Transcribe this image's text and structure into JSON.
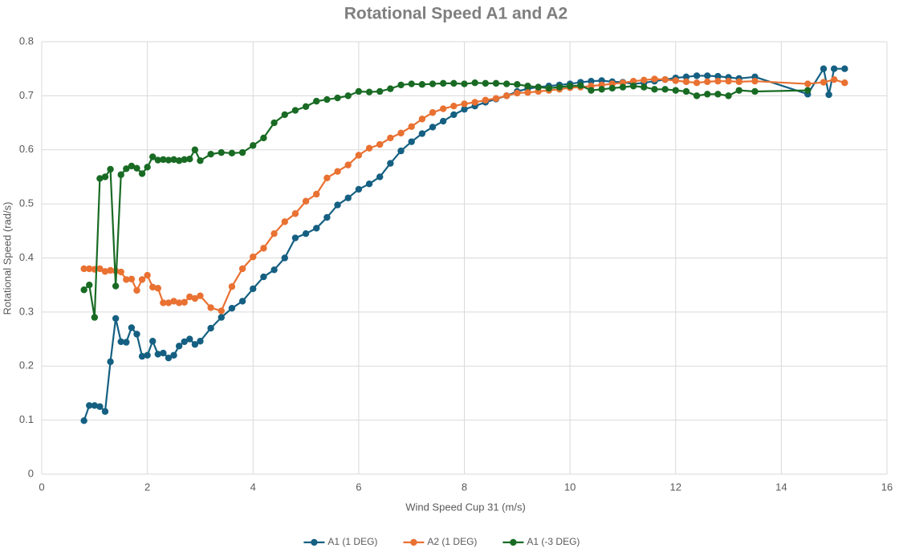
{
  "chart_data": {
    "type": "line",
    "title": "Rotational Speed A1 and A2",
    "x_label": "Wind Speed Cup 31 (m/s)",
    "y_label": "Rotational Speed (rad/s)",
    "xlim": [
      0,
      16
    ],
    "xticks": [
      0,
      2,
      4,
      6,
      8,
      10,
      12,
      14,
      16
    ],
    "ylim": [
      0,
      0.8
    ],
    "yticks": [
      0,
      0.1,
      0.2,
      0.3,
      0.4,
      0.5,
      0.6,
      0.7,
      0.8
    ],
    "grid": true,
    "legend": "bottom",
    "series": [
      {
        "name": "A1 (1 DEG)",
        "color": "#156082",
        "x": [
          0.8,
          0.9,
          1.0,
          1.1,
          1.2,
          1.3,
          1.4,
          1.5,
          1.6,
          1.7,
          1.8,
          1.9,
          2.0,
          2.1,
          2.2,
          2.3,
          2.4,
          2.5,
          2.6,
          2.7,
          2.8,
          2.9,
          3.0,
          3.2,
          3.4,
          3.6,
          3.8,
          4.0,
          4.2,
          4.4,
          4.6,
          4.8,
          5.0,
          5.2,
          5.4,
          5.6,
          5.8,
          6.0,
          6.2,
          6.4,
          6.6,
          6.8,
          7.0,
          7.2,
          7.4,
          7.6,
          7.8,
          8.0,
          8.2,
          8.4,
          8.6,
          8.8,
          9.0,
          9.2,
          9.4,
          9.6,
          9.8,
          10.0,
          10.2,
          10.4,
          10.6,
          10.8,
          11.0,
          11.2,
          11.4,
          11.6,
          11.8,
          12.0,
          12.2,
          12.4,
          12.6,
          12.8,
          13.0,
          13.2,
          13.5,
          14.5,
          14.8,
          14.9,
          15.0,
          15.2
        ],
        "values": [
          0.099,
          0.127,
          0.127,
          0.125,
          0.116,
          0.208,
          0.288,
          0.245,
          0.244,
          0.271,
          0.259,
          0.218,
          0.22,
          0.246,
          0.222,
          0.224,
          0.215,
          0.22,
          0.237,
          0.245,
          0.25,
          0.24,
          0.246,
          0.27,
          0.29,
          0.307,
          0.32,
          0.343,
          0.365,
          0.378,
          0.4,
          0.437,
          0.445,
          0.455,
          0.475,
          0.498,
          0.511,
          0.527,
          0.537,
          0.55,
          0.575,
          0.598,
          0.615,
          0.63,
          0.642,
          0.653,
          0.665,
          0.675,
          0.681,
          0.688,
          0.694,
          0.7,
          0.708,
          0.713,
          0.716,
          0.718,
          0.72,
          0.722,
          0.725,
          0.727,
          0.728,
          0.726,
          0.725,
          0.722,
          0.724,
          0.727,
          0.73,
          0.733,
          0.735,
          0.737,
          0.737,
          0.736,
          0.734,
          0.732,
          0.735,
          0.703,
          0.75,
          0.702,
          0.75,
          0.75
        ]
      },
      {
        "name": "A2 (1 DEG)",
        "color": "#e97132",
        "x": [
          0.8,
          0.9,
          1.0,
          1.1,
          1.2,
          1.3,
          1.4,
          1.5,
          1.6,
          1.7,
          1.8,
          1.9,
          2.0,
          2.1,
          2.2,
          2.3,
          2.4,
          2.5,
          2.6,
          2.7,
          2.8,
          2.9,
          3.0,
          3.2,
          3.4,
          3.6,
          3.8,
          4.0,
          4.2,
          4.4,
          4.6,
          4.8,
          5.0,
          5.2,
          5.4,
          5.6,
          5.8,
          6.0,
          6.2,
          6.4,
          6.6,
          6.8,
          7.0,
          7.2,
          7.4,
          7.6,
          7.8,
          8.0,
          8.2,
          8.4,
          8.6,
          8.8,
          9.0,
          9.2,
          9.4,
          9.6,
          9.8,
          10.0,
          10.2,
          10.4,
          10.6,
          10.8,
          11.0,
          11.2,
          11.4,
          11.6,
          11.8,
          12.0,
          12.2,
          12.4,
          12.6,
          12.8,
          13.0,
          13.2,
          13.5,
          14.5,
          14.8,
          15.0,
          15.2
        ],
        "values": [
          0.38,
          0.38,
          0.379,
          0.38,
          0.375,
          0.377,
          0.376,
          0.374,
          0.36,
          0.361,
          0.34,
          0.36,
          0.368,
          0.346,
          0.344,
          0.317,
          0.317,
          0.32,
          0.317,
          0.318,
          0.328,
          0.325,
          0.33,
          0.308,
          0.302,
          0.347,
          0.38,
          0.402,
          0.418,
          0.445,
          0.467,
          0.482,
          0.505,
          0.518,
          0.548,
          0.56,
          0.572,
          0.59,
          0.603,
          0.61,
          0.622,
          0.631,
          0.643,
          0.657,
          0.669,
          0.676,
          0.681,
          0.685,
          0.688,
          0.692,
          0.695,
          0.7,
          0.705,
          0.706,
          0.708,
          0.71,
          0.712,
          0.715,
          0.716,
          0.718,
          0.72,
          0.722,
          0.724,
          0.727,
          0.729,
          0.731,
          0.73,
          0.728,
          0.726,
          0.724,
          0.726,
          0.727,
          0.727,
          0.726,
          0.727,
          0.722,
          0.725,
          0.73,
          0.724
        ]
      },
      {
        "name": "A1 (-3 DEG)",
        "color": "#196b24",
        "x": [
          0.8,
          0.9,
          1.0,
          1.1,
          1.2,
          1.3,
          1.4,
          1.5,
          1.6,
          1.7,
          1.8,
          1.9,
          2.0,
          2.1,
          2.2,
          2.3,
          2.4,
          2.5,
          2.6,
          2.7,
          2.8,
          2.9,
          3.0,
          3.2,
          3.4,
          3.6,
          3.8,
          4.0,
          4.2,
          4.4,
          4.6,
          4.8,
          5.0,
          5.2,
          5.4,
          5.6,
          5.8,
          6.0,
          6.2,
          6.4,
          6.6,
          6.8,
          7.0,
          7.2,
          7.4,
          7.6,
          7.8,
          8.0,
          8.2,
          8.4,
          8.6,
          8.8,
          9.0,
          9.2,
          9.4,
          9.6,
          9.8,
          10.0,
          10.2,
          10.4,
          10.6,
          10.8,
          11.0,
          11.2,
          11.4,
          11.6,
          11.8,
          12.0,
          12.2,
          12.4,
          12.6,
          12.8,
          13.0,
          13.2,
          13.5,
          14.5
        ],
        "values": [
          0.341,
          0.35,
          0.29,
          0.547,
          0.55,
          0.564,
          0.348,
          0.554,
          0.565,
          0.57,
          0.566,
          0.556,
          0.568,
          0.587,
          0.581,
          0.582,
          0.581,
          0.582,
          0.58,
          0.582,
          0.583,
          0.6,
          0.58,
          0.592,
          0.595,
          0.594,
          0.595,
          0.608,
          0.622,
          0.65,
          0.665,
          0.673,
          0.68,
          0.69,
          0.693,
          0.696,
          0.7,
          0.708,
          0.707,
          0.708,
          0.713,
          0.72,
          0.722,
          0.721,
          0.722,
          0.723,
          0.723,
          0.722,
          0.724,
          0.723,
          0.723,
          0.722,
          0.721,
          0.718,
          0.716,
          0.714,
          0.716,
          0.718,
          0.719,
          0.71,
          0.712,
          0.714,
          0.716,
          0.718,
          0.716,
          0.712,
          0.712,
          0.71,
          0.708,
          0.7,
          0.703,
          0.703,
          0.7,
          0.71,
          0.708,
          0.71
        ]
      }
    ]
  }
}
